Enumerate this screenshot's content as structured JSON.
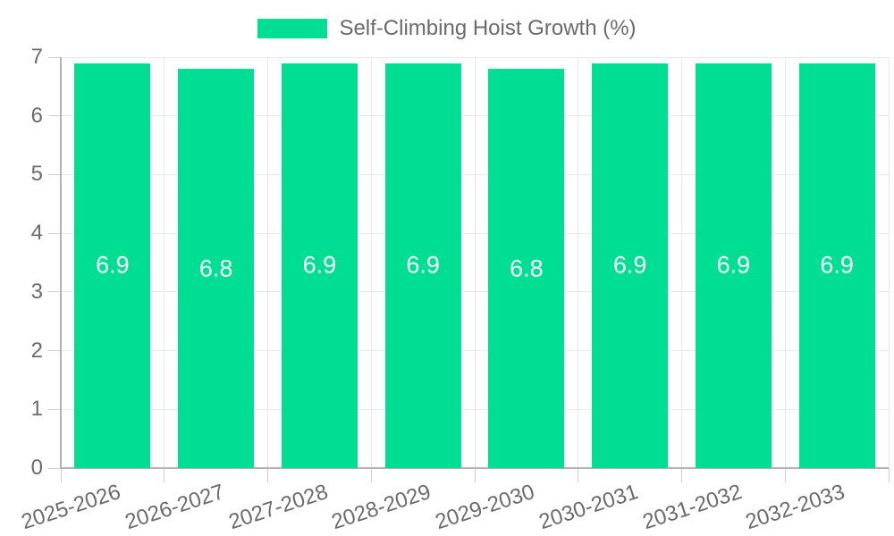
{
  "legend": {
    "label": "Self-Climbing Hoist Growth (%)"
  },
  "chart_data": {
    "type": "bar",
    "title": "",
    "xlabel": "",
    "ylabel": "",
    "categories": [
      "2025-2026",
      "2026-2027",
      "2027-2028",
      "2028-2029",
      "2029-2030",
      "2030-2031",
      "2031-2032",
      "2032-2033"
    ],
    "series": [
      {
        "name": "Self-Climbing Hoist Growth (%)",
        "values": [
          6.9,
          6.8,
          6.9,
          6.9,
          6.8,
          6.9,
          6.9,
          6.9
        ],
        "bar_labels": [
          "6.9",
          "6.8",
          "6.9",
          "6.9",
          "6.8",
          "6.9",
          "6.9",
          "6.9"
        ]
      }
    ],
    "ylim": [
      0,
      7
    ],
    "yticks": [
      0,
      1,
      2,
      3,
      4,
      5,
      6,
      7
    ],
    "grid": true,
    "legend_position": "top",
    "colors": {
      "bar": "#00de94",
      "bar_label_text": "#ffffff",
      "axis_text": "#6b6b6b",
      "gridline": "#e8e8e8",
      "axis_line": "#b2b2b2",
      "background": "#ffffff"
    }
  }
}
